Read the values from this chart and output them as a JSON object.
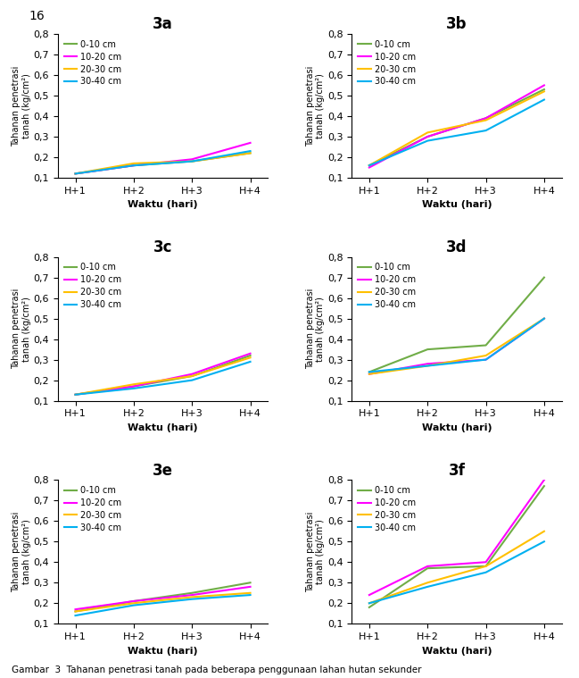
{
  "subplots": [
    {
      "title": "3a",
      "data": {
        "0-10 cm": [
          0.12,
          0.16,
          0.18,
          0.22
        ],
        "10-20 cm": [
          0.12,
          0.16,
          0.19,
          0.27
        ],
        "20-30 cm": [
          0.12,
          0.17,
          0.18,
          0.22
        ],
        "30-40 cm": [
          0.12,
          0.16,
          0.18,
          0.23
        ]
      }
    },
    {
      "title": "3b",
      "data": {
        "0-10 cm": [
          0.16,
          0.3,
          0.39,
          0.53
        ],
        "10-20 cm": [
          0.15,
          0.3,
          0.39,
          0.55
        ],
        "20-30 cm": [
          0.16,
          0.32,
          0.38,
          0.52
        ],
        "30-40 cm": [
          0.16,
          0.28,
          0.33,
          0.48
        ]
      }
    },
    {
      "title": "3c",
      "data": {
        "0-10 cm": [
          0.13,
          0.17,
          0.22,
          0.32
        ],
        "10-20 cm": [
          0.13,
          0.17,
          0.23,
          0.33
        ],
        "20-30 cm": [
          0.13,
          0.18,
          0.22,
          0.31
        ],
        "30-40 cm": [
          0.13,
          0.16,
          0.2,
          0.29
        ]
      }
    },
    {
      "title": "3d",
      "data": {
        "0-10 cm": [
          0.24,
          0.35,
          0.37,
          0.7
        ],
        "10-20 cm": [
          0.23,
          0.28,
          0.3,
          0.5
        ],
        "20-30 cm": [
          0.23,
          0.27,
          0.32,
          0.5
        ],
        "30-40 cm": [
          0.24,
          0.27,
          0.3,
          0.5
        ]
      }
    },
    {
      "title": "3e",
      "data": {
        "0-10 cm": [
          0.16,
          0.21,
          0.25,
          0.3
        ],
        "10-20 cm": [
          0.17,
          0.21,
          0.24,
          0.28
        ],
        "20-30 cm": [
          0.16,
          0.2,
          0.23,
          0.25
        ],
        "30-40 cm": [
          0.14,
          0.19,
          0.22,
          0.24
        ]
      }
    },
    {
      "title": "3f",
      "data": {
        "0-10 cm": [
          0.18,
          0.37,
          0.38,
          0.77
        ],
        "10-20 cm": [
          0.24,
          0.38,
          0.4,
          0.8
        ],
        "20-30 cm": [
          0.2,
          0.3,
          0.38,
          0.55
        ],
        "30-40 cm": [
          0.2,
          0.28,
          0.35,
          0.5
        ]
      }
    }
  ],
  "x_labels": [
    "H+1",
    "H+2",
    "H+3",
    "H+4"
  ],
  "x_label": "Waktu (hari)",
  "y_label": "Tahanan penetrasi\ntanah (kg/cm²)",
  "ylim": [
    0.1,
    0.8
  ],
  "yticks": [
    0.1,
    0.2,
    0.3,
    0.4,
    0.5,
    0.6,
    0.7,
    0.8
  ],
  "line_colors": {
    "0-10 cm": "#70ad47",
    "10-20 cm": "#ff00ff",
    "20-30 cm": "#ffc000",
    "30-40 cm": "#00b0f0"
  },
  "legend_labels": [
    "0-10 cm",
    "10-20 cm",
    "20-30 cm",
    "30-40 cm"
  ],
  "caption": "Gambar  3  Tahanan penetrasi tanah pada beberapa penggunaan lahan hutan sekunder",
  "page_number": "16",
  "background_color": "#ffffff"
}
